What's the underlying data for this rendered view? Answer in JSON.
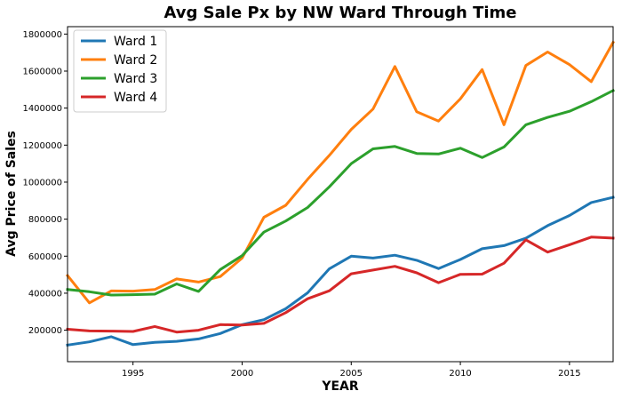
{
  "chart_data": {
    "type": "line",
    "title": "Avg Sale Px by NW Ward Through Time",
    "xlabel": "YEAR",
    "ylabel": "Avg Price of Sales",
    "xlim": [
      1992,
      2017
    ],
    "ylim": [
      30000,
      1840000
    ],
    "x_ticks": [
      1995,
      2000,
      2005,
      2010,
      2015
    ],
    "y_ticks": [
      200000,
      400000,
      600000,
      800000,
      1000000,
      1200000,
      1400000,
      1600000,
      1800000
    ],
    "grid": false,
    "legend_position": "top-left",
    "x": [
      1992,
      1993,
      1994,
      1995,
      1996,
      1997,
      1998,
      1999,
      2000,
      2001,
      2002,
      2003,
      2004,
      2005,
      2006,
      2007,
      2008,
      2009,
      2010,
      2011,
      2012,
      2013,
      2014,
      2015,
      2016,
      2017
    ],
    "series": [
      {
        "name": "Ward 1",
        "color": "#1f77b4",
        "values": [
          120000,
          137000,
          165000,
          122000,
          134000,
          140000,
          153000,
          182000,
          230000,
          257000,
          316000,
          402000,
          532000,
          600000,
          590000,
          605000,
          578000,
          533000,
          582000,
          640000,
          657000,
          697000,
          765000,
          820000,
          890000,
          918000
        ]
      },
      {
        "name": "Ward 2",
        "color": "#ff7f0e",
        "values": [
          495000,
          348000,
          412000,
          411000,
          420000,
          477000,
          460000,
          490000,
          590000,
          810000,
          875000,
          1015000,
          1145000,
          1285000,
          1395000,
          1625000,
          1380000,
          1330000,
          1450000,
          1608000,
          1310000,
          1630000,
          1703000,
          1635000,
          1543000,
          1755000
        ]
      },
      {
        "name": "Ward 3",
        "color": "#2ca02c",
        "values": [
          420000,
          408000,
          390000,
          392000,
          395000,
          450000,
          410000,
          528000,
          603000,
          730000,
          790000,
          863000,
          975000,
          1100000,
          1180000,
          1193000,
          1155000,
          1152000,
          1183000,
          1133000,
          1190000,
          1310000,
          1350000,
          1383000,
          1435000,
          1495000
        ]
      },
      {
        "name": "Ward 4",
        "color": "#d62728",
        "values": [
          205000,
          196000,
          195000,
          193000,
          220000,
          190000,
          200000,
          230000,
          228000,
          237000,
          295000,
          370000,
          413000,
          505000,
          525000,
          545000,
          510000,
          457000,
          502000,
          503000,
          562000,
          688000,
          622000,
          662000,
          703000,
          698000
        ]
      }
    ]
  }
}
